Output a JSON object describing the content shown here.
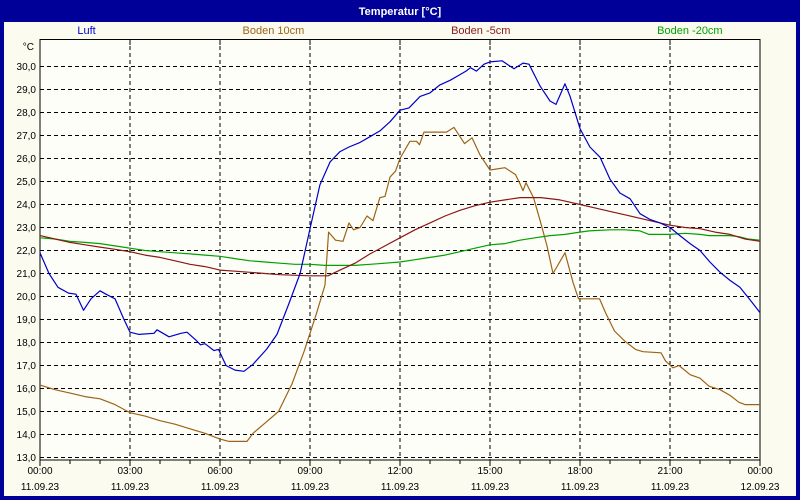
{
  "window": {
    "title": "Temperatur [°C]"
  },
  "legend": [
    {
      "label": "Luft",
      "color": "#0000cc"
    },
    {
      "label": "Boden 10cm",
      "color": "#9c6318"
    },
    {
      "label": "Boden -5cm",
      "color": "#8b1717"
    },
    {
      "label": "Boden -20cm",
      "color": "#00a000"
    }
  ],
  "chart_data": {
    "type": "line",
    "title": "Temperatur [°C]",
    "ylabel": "°C",
    "ylim": [
      13,
      30.5
    ],
    "xlim_hours": [
      0,
      24
    ],
    "grid": "dashed",
    "legend_position": "top",
    "y_tick_labels": [
      "30,0",
      "29,0",
      "28,0",
      "27,0",
      "26,0",
      "25,0",
      "24,0",
      "23,0",
      "22,0",
      "21,0",
      "20,0",
      "19,0",
      "18,0",
      "17,0",
      "16,0",
      "15,0",
      "14,0",
      "13,0"
    ],
    "y_tick_values": [
      30,
      29,
      28,
      27,
      26,
      25,
      24,
      23,
      22,
      21,
      20,
      19,
      18,
      17,
      16,
      15,
      14,
      13
    ],
    "x_ticks": [
      {
        "time": "00:00",
        "date": "11.09.23"
      },
      {
        "time": "03:00",
        "date": "11.09.23"
      },
      {
        "time": "06:00",
        "date": "11.09.23"
      },
      {
        "time": "09:00",
        "date": "11.09.23"
      },
      {
        "time": "12:00",
        "date": "11.09.23"
      },
      {
        "time": "15:00",
        "date": "11.09.23"
      },
      {
        "time": "18:00",
        "date": "11.09.23"
      },
      {
        "time": "21:00",
        "date": "11.09.23"
      },
      {
        "time": "00:00",
        "date": "12.09.23"
      }
    ],
    "series": [
      {
        "name": "Boden 10cm",
        "color": "#9c6318",
        "points": [
          [
            0,
            16.15
          ],
          [
            0.5,
            15.95
          ],
          [
            1,
            15.8
          ],
          [
            1.5,
            15.65
          ],
          [
            2,
            15.55
          ],
          [
            2.5,
            15.3
          ],
          [
            3,
            14.95
          ],
          [
            3.5,
            14.8
          ],
          [
            4,
            14.6
          ],
          [
            4.5,
            14.45
          ],
          [
            5,
            14.25
          ],
          [
            5.5,
            14.05
          ],
          [
            6,
            13.8
          ],
          [
            6.3,
            13.7
          ],
          [
            6.9,
            13.7
          ],
          [
            7.1,
            14.05
          ],
          [
            7.55,
            14.55
          ],
          [
            7.95,
            15.0
          ],
          [
            8.4,
            16.2
          ],
          [
            8.8,
            17.6
          ],
          [
            9.2,
            19.2
          ],
          [
            9.5,
            20.5
          ],
          [
            9.62,
            22.8
          ],
          [
            9.85,
            22.45
          ],
          [
            10.1,
            22.4
          ],
          [
            10.3,
            23.2
          ],
          [
            10.45,
            22.9
          ],
          [
            10.67,
            23.0
          ],
          [
            10.9,
            23.5
          ],
          [
            11.1,
            23.3
          ],
          [
            11.33,
            24.3
          ],
          [
            11.5,
            24.35
          ],
          [
            11.67,
            25.2
          ],
          [
            11.85,
            25.45
          ],
          [
            12,
            26.0
          ],
          [
            12.33,
            26.75
          ],
          [
            12.55,
            26.75
          ],
          [
            12.65,
            26.6
          ],
          [
            12.8,
            27.15
          ],
          [
            13.55,
            27.15
          ],
          [
            13.8,
            27.35
          ],
          [
            14.05,
            26.85
          ],
          [
            14.15,
            26.65
          ],
          [
            14.4,
            26.9
          ],
          [
            14.67,
            26.15
          ],
          [
            15,
            25.5
          ],
          [
            15.5,
            25.6
          ],
          [
            15.85,
            25.3
          ],
          [
            16,
            24.9
          ],
          [
            16.1,
            24.6
          ],
          [
            16.2,
            24.95
          ],
          [
            16.45,
            24.3
          ],
          [
            16.67,
            23.3
          ],
          [
            16.9,
            22.2
          ],
          [
            17.1,
            21.0
          ],
          [
            17.5,
            21.9
          ],
          [
            17.77,
            20.6
          ],
          [
            17.95,
            19.9
          ],
          [
            18.65,
            19.9
          ],
          [
            18.85,
            19.3
          ],
          [
            19.15,
            18.5
          ],
          [
            19.5,
            18.05
          ],
          [
            19.85,
            17.7
          ],
          [
            20.1,
            17.6
          ],
          [
            20.7,
            17.55
          ],
          [
            20.85,
            17.2
          ],
          [
            21.1,
            16.9
          ],
          [
            21.3,
            17.0
          ],
          [
            21.67,
            16.6
          ],
          [
            22,
            16.45
          ],
          [
            22.3,
            16.1
          ],
          [
            22.67,
            15.95
          ],
          [
            23,
            15.7
          ],
          [
            23.3,
            15.4
          ],
          [
            23.5,
            15.3
          ],
          [
            24,
            15.3
          ]
        ]
      },
      {
        "name": "Boden -20cm",
        "color": "#00a000",
        "points": [
          [
            0,
            22.55
          ],
          [
            0.5,
            22.5
          ],
          [
            1,
            22.4
          ],
          [
            1.5,
            22.35
          ],
          [
            2,
            22.3
          ],
          [
            2.5,
            22.2
          ],
          [
            3,
            22.1
          ],
          [
            3.5,
            22.0
          ],
          [
            4,
            21.95
          ],
          [
            4.5,
            21.9
          ],
          [
            5,
            21.85
          ],
          [
            5.5,
            21.8
          ],
          [
            6,
            21.75
          ],
          [
            6.5,
            21.65
          ],
          [
            7,
            21.55
          ],
          [
            7.5,
            21.5
          ],
          [
            8,
            21.45
          ],
          [
            8.5,
            21.4
          ],
          [
            9,
            21.4
          ],
          [
            9.5,
            21.35
          ],
          [
            10,
            21.35
          ],
          [
            10.5,
            21.35
          ],
          [
            11,
            21.4
          ],
          [
            11.5,
            21.45
          ],
          [
            12,
            21.5
          ],
          [
            12.5,
            21.6
          ],
          [
            13,
            21.7
          ],
          [
            13.5,
            21.8
          ],
          [
            14,
            21.95
          ],
          [
            14.5,
            22.1
          ],
          [
            15,
            22.25
          ],
          [
            15.5,
            22.3
          ],
          [
            16,
            22.45
          ],
          [
            16.5,
            22.55
          ],
          [
            17,
            22.65
          ],
          [
            17.5,
            22.7
          ],
          [
            18,
            22.8
          ],
          [
            18.3,
            22.85
          ],
          [
            19,
            22.9
          ],
          [
            19.5,
            22.9
          ],
          [
            20,
            22.85
          ],
          [
            20.3,
            22.7
          ],
          [
            21,
            22.7
          ],
          [
            21.5,
            22.75
          ],
          [
            22,
            22.7
          ],
          [
            22.3,
            22.65
          ],
          [
            23,
            22.65
          ],
          [
            23.3,
            22.6
          ],
          [
            23.6,
            22.5
          ],
          [
            24,
            22.45
          ]
        ]
      },
      {
        "name": "Boden -5cm",
        "color": "#8b1717",
        "points": [
          [
            0,
            22.65
          ],
          [
            0.5,
            22.5
          ],
          [
            1,
            22.35
          ],
          [
            1.5,
            22.25
          ],
          [
            2,
            22.15
          ],
          [
            2.5,
            22.05
          ],
          [
            3,
            21.95
          ],
          [
            3.5,
            21.8
          ],
          [
            4,
            21.7
          ],
          [
            4.5,
            21.55
          ],
          [
            5,
            21.4
          ],
          [
            5.5,
            21.3
          ],
          [
            6,
            21.15
          ],
          [
            6.5,
            21.1
          ],
          [
            7,
            21.05
          ],
          [
            7.5,
            21.0
          ],
          [
            8,
            20.95
          ],
          [
            9,
            20.9
          ],
          [
            9.6,
            20.9
          ],
          [
            10,
            21.15
          ],
          [
            10.5,
            21.45
          ],
          [
            11,
            21.85
          ],
          [
            11.5,
            22.2
          ],
          [
            12,
            22.55
          ],
          [
            12.5,
            22.9
          ],
          [
            13,
            23.2
          ],
          [
            13.5,
            23.5
          ],
          [
            14,
            23.75
          ],
          [
            14.5,
            23.95
          ],
          [
            15,
            24.1
          ],
          [
            15.5,
            24.2
          ],
          [
            16,
            24.3
          ],
          [
            16.7,
            24.3
          ],
          [
            17.33,
            24.2
          ],
          [
            18,
            24.0
          ],
          [
            18.5,
            23.85
          ],
          [
            19,
            23.7
          ],
          [
            19.5,
            23.55
          ],
          [
            20,
            23.4
          ],
          [
            20.5,
            23.25
          ],
          [
            21,
            23.1
          ],
          [
            21.5,
            23.0
          ],
          [
            22,
            22.95
          ],
          [
            22.5,
            22.8
          ],
          [
            23,
            22.7
          ],
          [
            23.5,
            22.5
          ],
          [
            24,
            22.4
          ]
        ]
      },
      {
        "name": "Luft",
        "color": "#0000cc",
        "points": [
          [
            0,
            21.9
          ],
          [
            0.3,
            21.0
          ],
          [
            0.6,
            20.4
          ],
          [
            0.95,
            20.15
          ],
          [
            1.2,
            20.1
          ],
          [
            1.45,
            19.4
          ],
          [
            1.7,
            19.9
          ],
          [
            2,
            20.25
          ],
          [
            2.2,
            20.1
          ],
          [
            2.5,
            19.9
          ],
          [
            2.8,
            19.0
          ],
          [
            3.0,
            18.45
          ],
          [
            3.3,
            18.35
          ],
          [
            3.8,
            18.4
          ],
          [
            3.9,
            18.55
          ],
          [
            4.3,
            18.25
          ],
          [
            4.7,
            18.4
          ],
          [
            4.9,
            18.45
          ],
          [
            5.2,
            18.1
          ],
          [
            5.35,
            17.9
          ],
          [
            5.5,
            17.95
          ],
          [
            5.8,
            17.65
          ],
          [
            5.95,
            17.7
          ],
          [
            6.2,
            17.0
          ],
          [
            6.5,
            16.8
          ],
          [
            6.8,
            16.75
          ],
          [
            7.1,
            17.05
          ],
          [
            7.55,
            17.7
          ],
          [
            7.9,
            18.35
          ],
          [
            8.3,
            19.7
          ],
          [
            8.67,
            21.0
          ],
          [
            9,
            22.95
          ],
          [
            9.33,
            24.85
          ],
          [
            9.67,
            25.85
          ],
          [
            10,
            26.3
          ],
          [
            10.3,
            26.5
          ],
          [
            10.67,
            26.7
          ],
          [
            11,
            26.95
          ],
          [
            11.33,
            27.2
          ],
          [
            11.67,
            27.6
          ],
          [
            12,
            28.1
          ],
          [
            12.3,
            28.2
          ],
          [
            12.67,
            28.7
          ],
          [
            13,
            28.85
          ],
          [
            13.33,
            29.2
          ],
          [
            13.67,
            29.4
          ],
          [
            14,
            29.65
          ],
          [
            14.2,
            29.8
          ],
          [
            14.35,
            29.95
          ],
          [
            14.55,
            29.8
          ],
          [
            14.8,
            30.1
          ],
          [
            15,
            30.2
          ],
          [
            15.4,
            30.25
          ],
          [
            15.8,
            29.9
          ],
          [
            16.1,
            30.15
          ],
          [
            16.3,
            30.1
          ],
          [
            16.67,
            29.15
          ],
          [
            17,
            28.5
          ],
          [
            17.2,
            28.35
          ],
          [
            17.5,
            29.25
          ],
          [
            17.67,
            28.7
          ],
          [
            18,
            27.3
          ],
          [
            18.33,
            26.5
          ],
          [
            18.67,
            26.05
          ],
          [
            19,
            25.1
          ],
          [
            19.33,
            24.5
          ],
          [
            19.67,
            24.25
          ],
          [
            20,
            23.6
          ],
          [
            20.33,
            23.35
          ],
          [
            20.67,
            23.2
          ],
          [
            21,
            23.0
          ],
          [
            21.33,
            22.65
          ],
          [
            21.67,
            22.3
          ],
          [
            22,
            22.0
          ],
          [
            22.33,
            21.5
          ],
          [
            22.67,
            21.05
          ],
          [
            23,
            20.7
          ],
          [
            23.33,
            20.4
          ],
          [
            23.67,
            19.85
          ],
          [
            24,
            19.3
          ]
        ]
      }
    ]
  }
}
